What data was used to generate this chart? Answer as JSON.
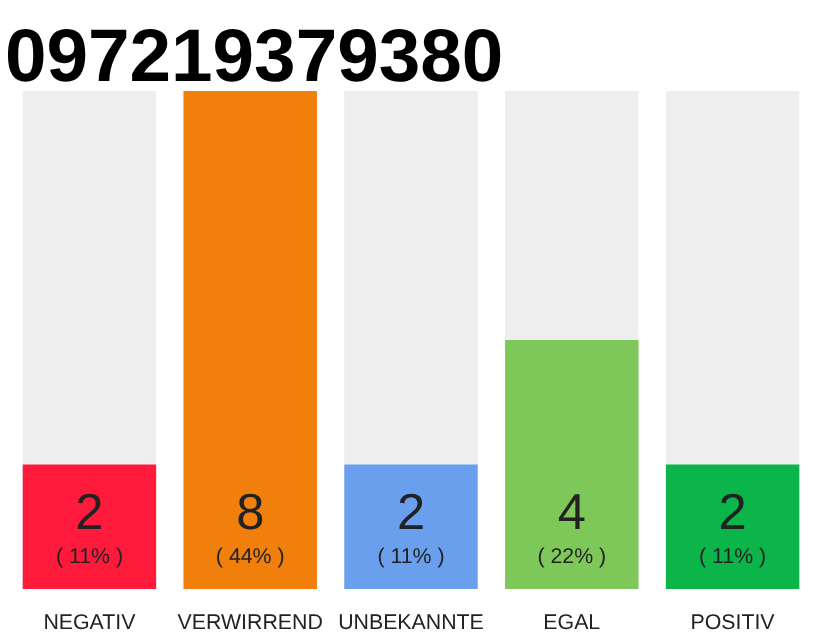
{
  "chart_data": {
    "type": "bar",
    "title": "097219379380",
    "categories": [
      "NEGATIV",
      "VERWIRREND",
      "UNBEKANNTE",
      "EGAL",
      "POSITIV"
    ],
    "values": [
      2,
      8,
      2,
      4,
      2
    ],
    "colors": [
      "#ff1a3c",
      "#f07f0c",
      "#6a9fee",
      "#7ec85a",
      "#0cb54a"
    ],
    "data_labels": true,
    "annotations": [
      "( 11% )",
      "( 44% )",
      "( 11% )",
      "( 22% )",
      "( 11% )"
    ],
    "tick_labels": "x",
    "grid": false
  }
}
